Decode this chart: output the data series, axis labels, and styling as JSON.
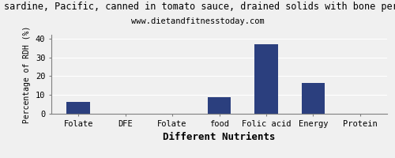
{
  "title": "sardine, Pacific, canned in tomato sauce, drained solids with bone per",
  "subtitle": "www.dietandfitnesstoday.com",
  "xlabel": "Different Nutrients",
  "ylabel": "Percentage of RDH (%)",
  "categories": [
    "Folate",
    "DFE",
    "Folate",
    "food",
    "Folic acid",
    "Energy",
    "Protein"
  ],
  "values": [
    6.5,
    0,
    0,
    9.0,
    37.0,
    16.5,
    0
  ],
  "bar_color": "#2b3f7e",
  "ylim": [
    0,
    42
  ],
  "yticks": [
    0,
    10,
    20,
    30,
    40
  ],
  "background_color": "#f0f0f0",
  "title_fontsize": 8.5,
  "subtitle_fontsize": 7.5,
  "xlabel_fontsize": 9,
  "ylabel_fontsize": 7,
  "tick_fontsize": 7.5
}
